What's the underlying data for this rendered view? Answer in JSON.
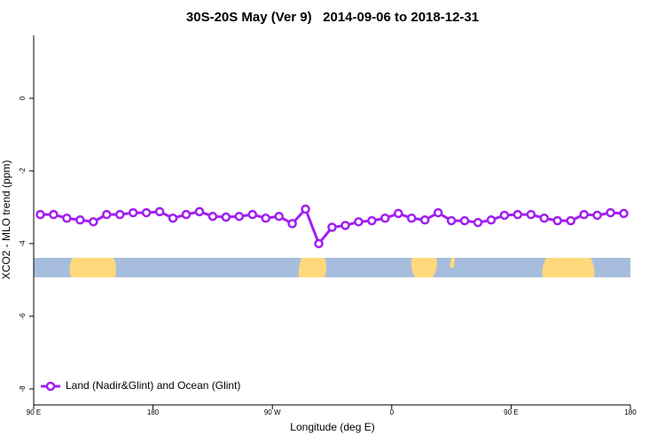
{
  "chart_data": {
    "type": "line",
    "title": "30S-20S May (Ver 9)   2014-09-06 to 2018-12-31",
    "xlabel": "Longitude (deg E)",
    "ylabel": "XCO2 - MLO trend (ppm)",
    "x": [
      95,
      105,
      115,
      125,
      135,
      145,
      155,
      165,
      175,
      185,
      195,
      205,
      215,
      225,
      235,
      245,
      255,
      265,
      275,
      285,
      295,
      305,
      315,
      325,
      335,
      345,
      355,
      365,
      375,
      385,
      395,
      405,
      415,
      425,
      435,
      445,
      455,
      465,
      475,
      485,
      495,
      505,
      515,
      525,
      535
    ],
    "series": [
      {
        "name": "Land (Nadir&Glint) and Ocean (Glint)",
        "color": "#a020f0",
        "values": [
          -3.2,
          -3.2,
          -3.3,
          -3.35,
          -3.4,
          -3.2,
          -3.2,
          -3.15,
          -3.15,
          -3.12,
          -3.3,
          -3.2,
          -3.12,
          -3.25,
          -3.27,
          -3.25,
          -3.2,
          -3.3,
          -3.25,
          -3.45,
          -3.05,
          -4.0,
          -3.55,
          -3.5,
          -3.4,
          -3.37,
          -3.3,
          -3.17,
          -3.3,
          -3.35,
          -3.15,
          -3.37,
          -3.37,
          -3.42,
          -3.35,
          -3.22,
          -3.2,
          -3.2,
          -3.3,
          -3.37,
          -3.37,
          -3.2,
          -3.22,
          -3.15,
          -3.17
        ]
      }
    ],
    "xlim": [
      90,
      540
    ],
    "xticks": [
      {
        "value": 90,
        "label": "90 E"
      },
      180,
      {
        "value": 270,
        "label": "90 W"
      },
      {
        "value": 360,
        "label": "0"
      },
      {
        "value": 450,
        "label": "90 E"
      },
      {
        "value": 540,
        "label": "180"
      }
    ],
    "ylim": [
      -8.44,
      1.73
    ],
    "yticks": [
      0,
      -2,
      -4,
      -6,
      -8
    ],
    "legend": "bottom-left"
  }
}
